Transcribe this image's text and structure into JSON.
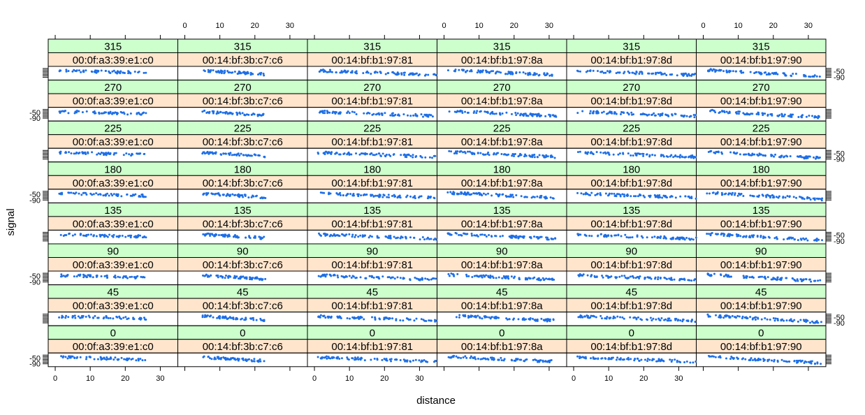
{
  "chart_data": {
    "type": "scatter",
    "title": "",
    "xlabel": "distance",
    "ylabel": "signal",
    "xlim": [
      -2,
      35
    ],
    "ylim": [
      -110,
      -15
    ],
    "x_ticks": [
      0,
      10,
      20,
      30
    ],
    "y_ticks": [
      -50,
      -90
    ],
    "colors": {
      "strip_angle": "#ccffcc",
      "strip_mac": "#ffe5cc",
      "points": "#1e6fe6"
    },
    "angles": [
      "315",
      "270",
      "225",
      "180",
      "135",
      "90",
      "45",
      "0"
    ],
    "macs": [
      "00:0f:a3:39:e1:c0",
      "00:14:bf:3b:c7:c6",
      "00:14:bf:b1:97:81",
      "00:14:bf:b1:97:8a",
      "00:14:bf:b1:97:8d",
      "00:14:bf:b1:97:90"
    ],
    "series": [
      {
        "name": "00:0f:a3:39:e1:c0",
        "distance_range": [
          1,
          26
        ],
        "signal_start": -45,
        "signal_end": -60,
        "approx_points": 60
      },
      {
        "name": "00:14:bf:3b:c7:c6",
        "distance_range": [
          5,
          23
        ],
        "signal_start": -45,
        "signal_end": -70,
        "approx_points": 60
      },
      {
        "name": "00:14:bf:b1:97:81",
        "distance_range": [
          1,
          35
        ],
        "signal_start": -45,
        "signal_end": -75,
        "approx_points": 80
      },
      {
        "name": "00:14:bf:b1:97:8a",
        "distance_range": [
          1,
          32
        ],
        "signal_start": -40,
        "signal_end": -75,
        "approx_points": 80
      },
      {
        "name": "00:14:bf:b1:97:8d",
        "distance_range": [
          1,
          35
        ],
        "signal_start": -45,
        "signal_end": -75,
        "approx_points": 80
      },
      {
        "name": "00:14:bf:b1:97:90",
        "distance_range": [
          1,
          34
        ],
        "signal_start": -40,
        "signal_end": -85,
        "approx_points": 80
      }
    ]
  }
}
